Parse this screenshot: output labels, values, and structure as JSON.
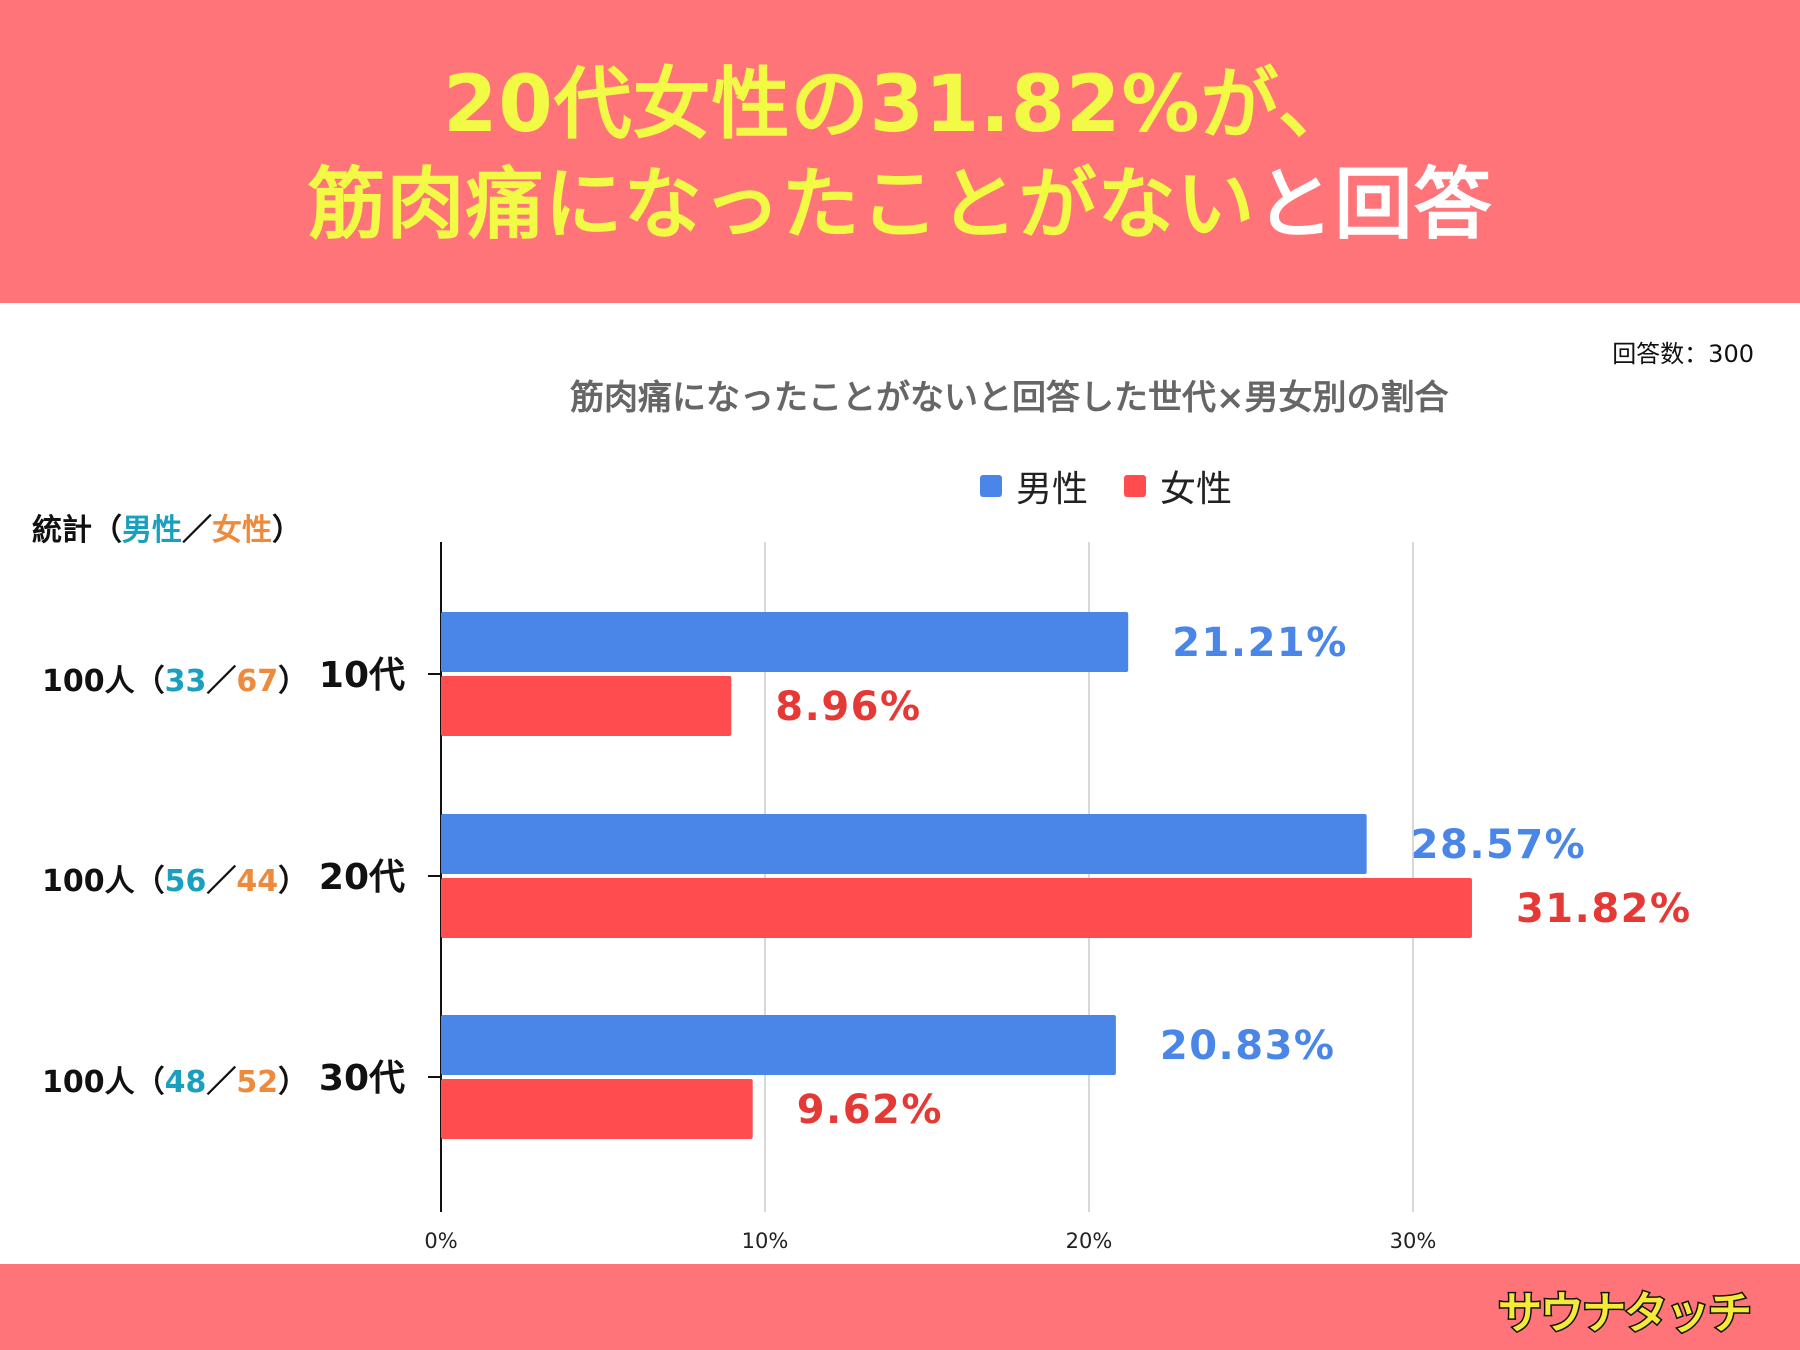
{
  "headline": {
    "line1": "20代女性の31.82%が、",
    "line2_a": "筋肉痛になったことがない",
    "line2_b": "と回答"
  },
  "response_count": "回答数：300",
  "stats": {
    "header_prefix": "統計（",
    "male": "男性",
    "sep": "／",
    "female": "女性",
    "header_suffix": "）",
    "rows": [
      {
        "total": "100人（",
        "male": "33",
        "sep": "／",
        "female": "67",
        "close": "）"
      },
      {
        "total": "100人（",
        "male": "56",
        "sep": "／",
        "female": "44",
        "close": "）"
      },
      {
        "total": "100人（",
        "male": "48",
        "sep": "／",
        "female": "52",
        "close": "）"
      }
    ]
  },
  "logo": {
    "text": "サウナタッチ"
  },
  "colors": {
    "header_bg": "#ff7479",
    "headline": "#f2fa46",
    "male": "#4a86e8",
    "female": "#ff4d4f",
    "male_label": "#4a86e8",
    "female_label": "#e53935"
  },
  "chart_data": {
    "type": "bar",
    "orientation": "horizontal",
    "title": "筋肉痛になったことがないと回答した世代×男女別の割合",
    "categories": [
      "10代",
      "20代",
      "30代"
    ],
    "series": [
      {
        "name": "男性",
        "values": [
          21.21,
          28.57,
          20.83
        ],
        "labels": [
          "21.21%",
          "28.57%",
          "20.83%"
        ]
      },
      {
        "name": "女性",
        "values": [
          8.96,
          31.82,
          9.62
        ],
        "labels": [
          "8.96%",
          "31.82%",
          "9.62%"
        ]
      }
    ],
    "xlim": [
      0,
      35
    ],
    "xticks": [
      0,
      10,
      20,
      30
    ],
    "xtick_labels": [
      "0%",
      "10%",
      "20%",
      "30%"
    ],
    "grid": true,
    "legend": "top"
  }
}
